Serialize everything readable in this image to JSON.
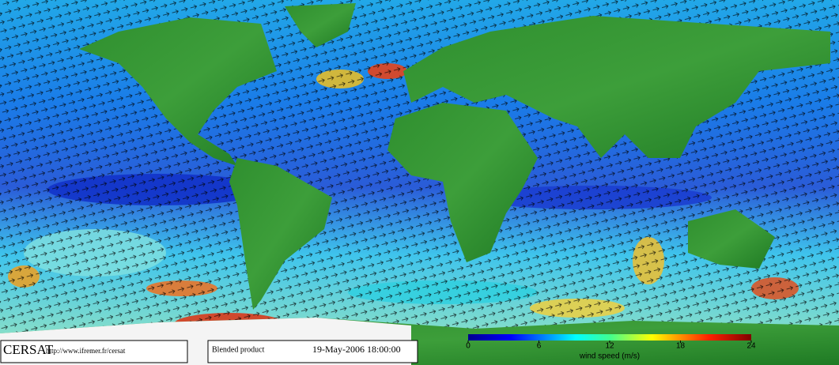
{
  "footer": {
    "logo": "CERSAT",
    "url": "http://www.ifremer.fr/cersat",
    "product": "Blended product",
    "date": "19-May-2006 18:00:00"
  },
  "colorbar": {
    "label": "wind speed (m/s)",
    "range": [
      0,
      24
    ],
    "ticks": [
      0,
      6,
      12,
      18,
      24
    ]
  }
}
